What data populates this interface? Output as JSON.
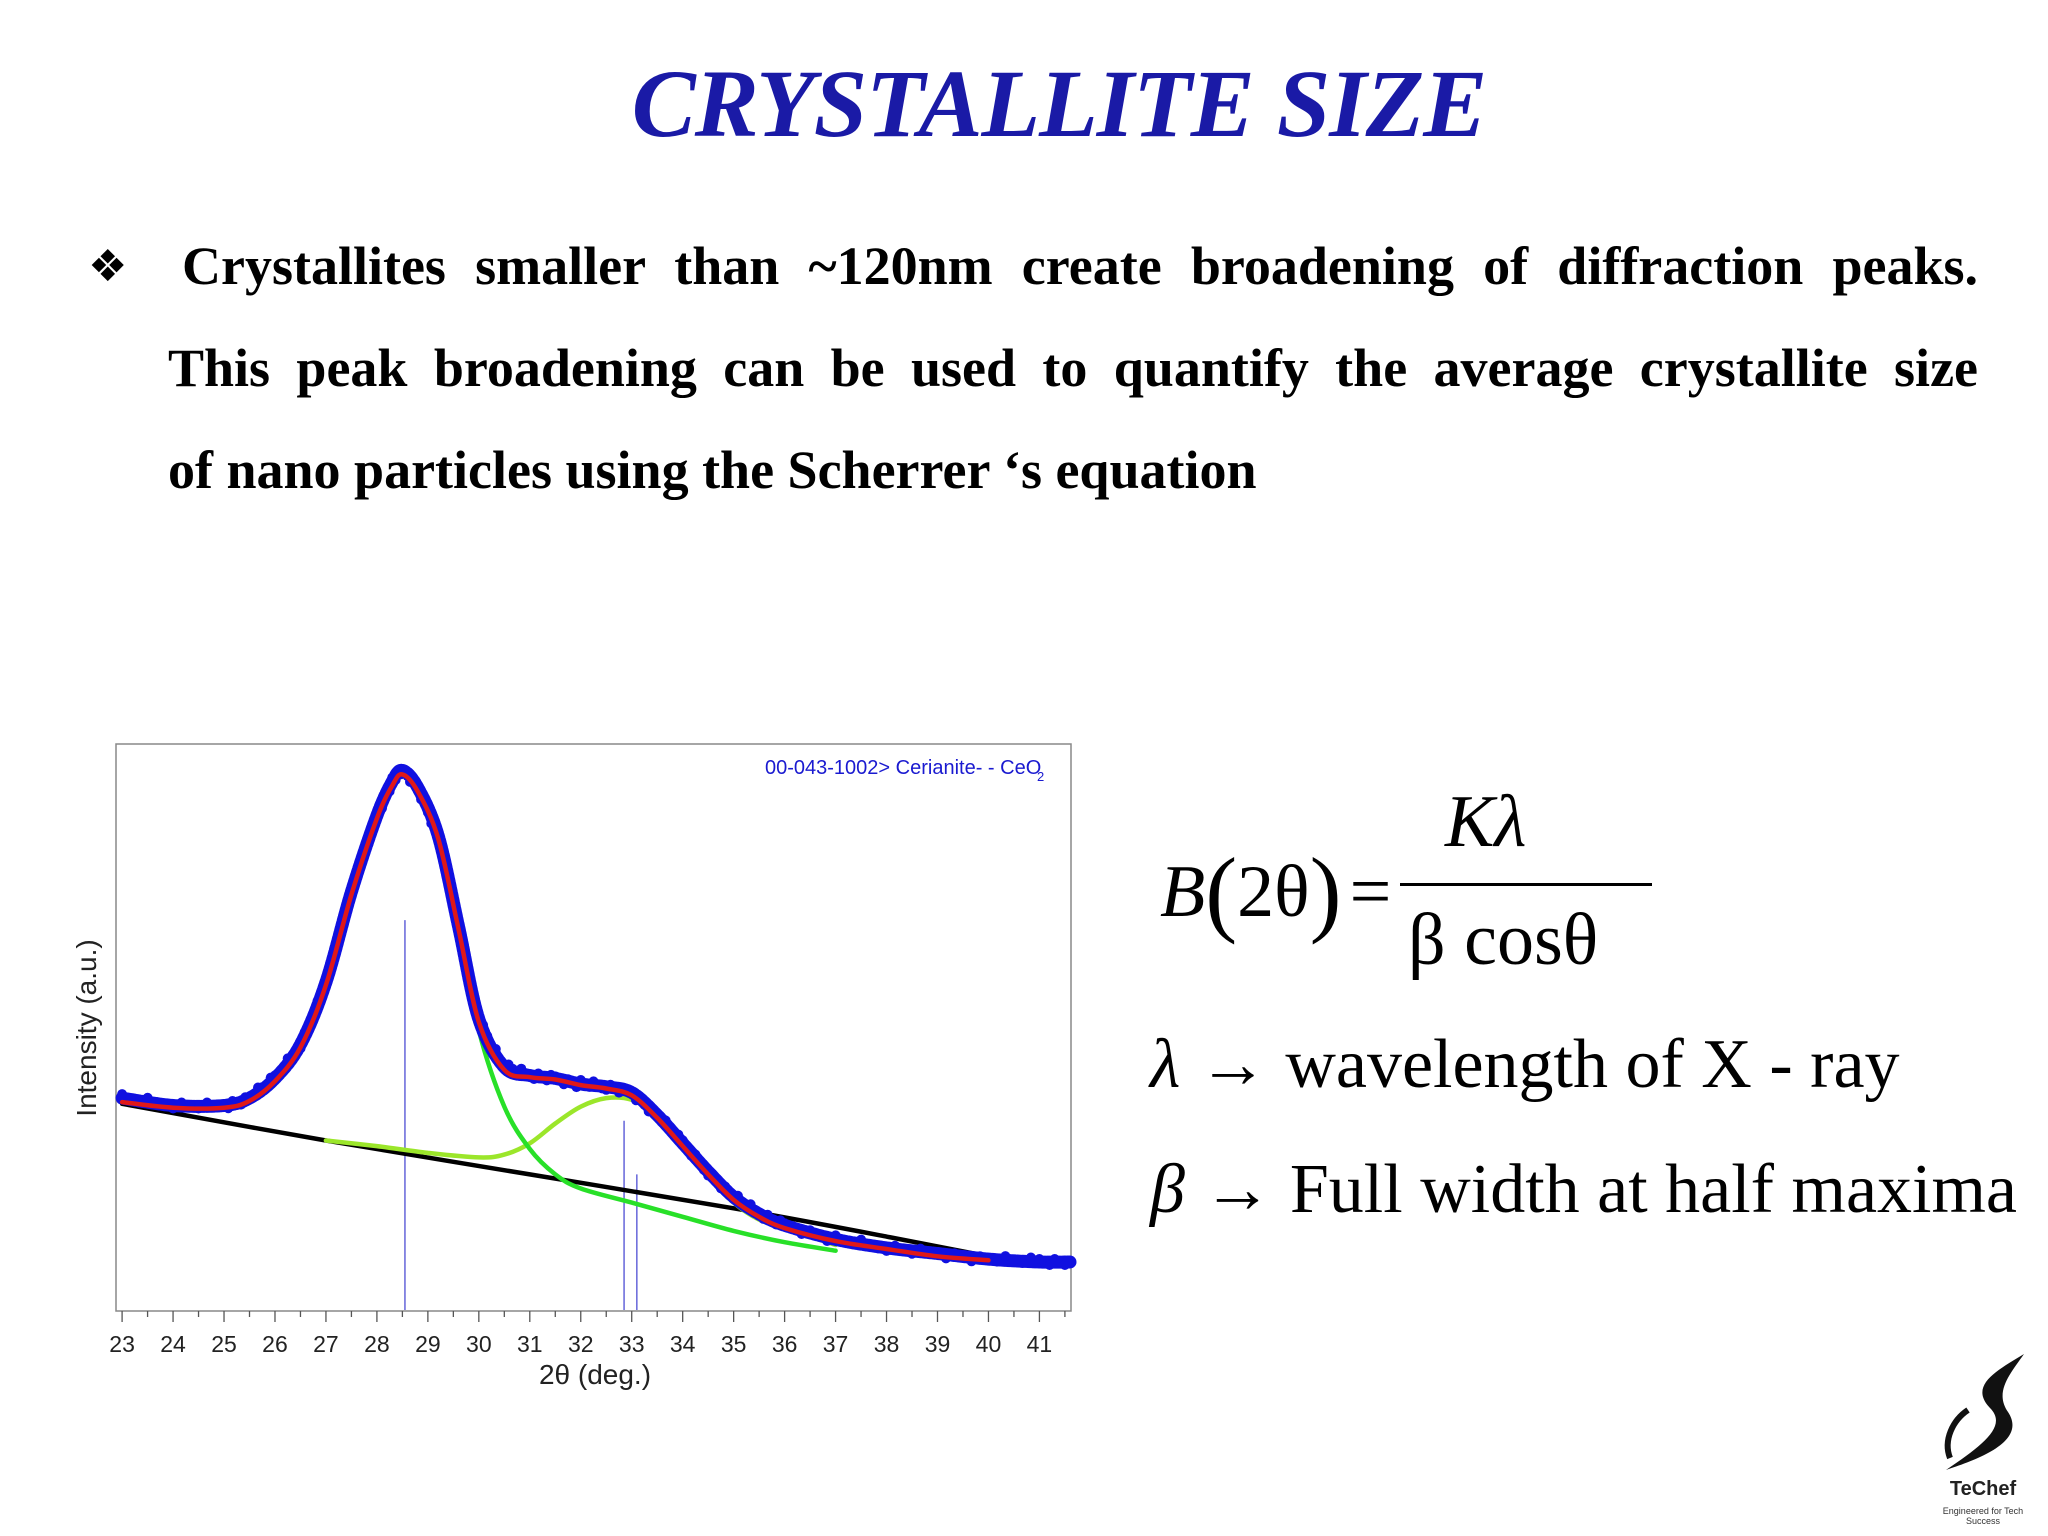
{
  "slide": {
    "title": "CRYSTALLITE SIZE",
    "bullet_marker": "❖",
    "bullet_lines": [
      "Crystallites smaller than ~120nm create broadening of diffraction peaks.",
      "This peak broadening can be used to quantify the average crystallite size",
      "of nano particles using the Scherrer ‘s equation"
    ]
  },
  "equation": {
    "lhs_symbol": "B",
    "lhs_arg": "2θ",
    "equals": "=",
    "numerator": "Kλ",
    "denominator": "β cosθ",
    "lambda_symbol": "λ",
    "lambda_text": "wavelength of X - ray",
    "beta_symbol": "β",
    "beta_text": "Full width at half maxima",
    "arrow": "→"
  },
  "logo": {
    "word": "TeChef",
    "tagline": "Engineered for Tech Success"
  },
  "chart_data": {
    "type": "line",
    "title": "",
    "xlabel": "2θ (deg.)",
    "ylabel": "Intensity (a.u.)",
    "xlim": [
      22.9,
      41.6
    ],
    "ylim": [
      0,
      1000
    ],
    "x_ticks": [
      23,
      24,
      25,
      26,
      27,
      28,
      29,
      30,
      31,
      32,
      33,
      34,
      35,
      36,
      37,
      38,
      39,
      40,
      41
    ],
    "grid": false,
    "annotation": "00-043-1002> Cerianite- - CeO",
    "annotation_marker": "2",
    "reference_lines": [
      {
        "x": 28.55,
        "top": 690,
        "color": "#6f6fdc"
      },
      {
        "x": 32.85,
        "top": 335,
        "color": "#6f6fdc"
      },
      {
        "x": 33.1,
        "top": 240,
        "color": "#6f6fdc"
      }
    ],
    "series": [
      {
        "role": "measured",
        "color": "#1010e0",
        "x": [
          23.0,
          24.0,
          25.0,
          25.5,
          26.0,
          26.5,
          27.0,
          27.5,
          28.0,
          28.3,
          28.5,
          28.8,
          29.2,
          29.6,
          30.0,
          30.5,
          31.0,
          31.5,
          32.0,
          32.5,
          33.0,
          33.5,
          34.0,
          34.5,
          35.0,
          35.5,
          36.0,
          37.0,
          38.0,
          39.0,
          40.0,
          41.0,
          41.6
        ],
        "y": [
          375,
          362,
          362,
          375,
          410,
          470,
          580,
          740,
          875,
          935,
          955,
          925,
          840,
          680,
          515,
          430,
          415,
          410,
          400,
          395,
          385,
          345,
          295,
          245,
          200,
          170,
          150,
          125,
          110,
          100,
          90,
          85,
          85
        ]
      },
      {
        "role": "fit",
        "color": "#e01818",
        "x": [
          23.0,
          24.0,
          25.0,
          25.5,
          26.0,
          26.5,
          27.0,
          27.5,
          28.0,
          28.3,
          28.5,
          28.8,
          29.2,
          29.6,
          30.0,
          30.5,
          31.0,
          31.5,
          32.0,
          32.5,
          33.0,
          33.5,
          34.0,
          34.5,
          35.0,
          35.5,
          36.0,
          37.0,
          38.0,
          39.0,
          40.0
        ],
        "y": [
          368,
          358,
          358,
          370,
          405,
          465,
          575,
          735,
          870,
          928,
          948,
          918,
          835,
          675,
          510,
          425,
          412,
          408,
          398,
          392,
          380,
          340,
          290,
          240,
          195,
          165,
          145,
          122,
          108,
          95,
          88
        ]
      },
      {
        "role": "component-peak-1",
        "color": "#28e028",
        "x": [
          27.5,
          28.0,
          28.3,
          28.5,
          28.8,
          29.2,
          29.6,
          30.0,
          30.5,
          31.0,
          31.5,
          32.0,
          33.0,
          34.0,
          35.0,
          36.0,
          37.0
        ],
        "y": [
          735,
          870,
          928,
          948,
          918,
          835,
          675,
          495,
          360,
          285,
          240,
          215,
          190,
          165,
          140,
          120,
          105
        ]
      },
      {
        "role": "component-peak-2",
        "color": "#9be62a",
        "x": [
          27.0,
          28.0,
          29.0,
          30.0,
          30.5,
          31.0,
          31.5,
          32.0,
          32.5,
          33.0,
          33.5,
          34.0,
          34.5,
          35.0,
          35.5,
          36.0,
          37.0
        ],
        "y": [
          300,
          290,
          278,
          270,
          275,
          295,
          330,
          360,
          375,
          372,
          345,
          290,
          235,
          190,
          160,
          145,
          115
        ]
      },
      {
        "role": "baseline",
        "color": "#000000",
        "x": [
          23.0,
          27.0,
          31.0,
          35.0,
          38.0,
          40.0
        ],
        "y": [
          365,
          300,
          240,
          180,
          130,
          95
        ]
      }
    ]
  }
}
